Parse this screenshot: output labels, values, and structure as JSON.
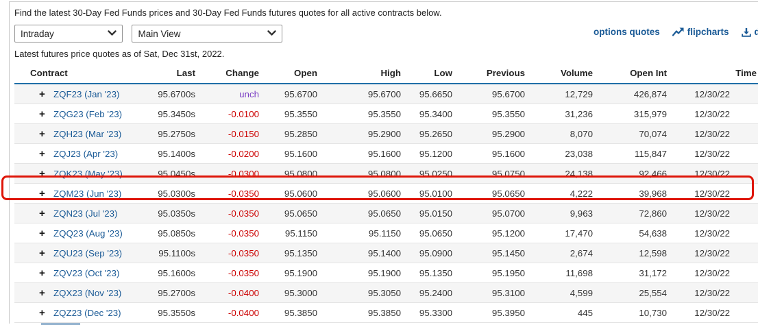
{
  "page": {
    "intro": "Find the latest 30-Day Fed Funds prices and 30-Day Fed Funds futures quotes for all active contracts below.",
    "note": "Latest futures price quotes as of Sat, Dec 31st, 2022."
  },
  "toolbar": {
    "frequency_select": {
      "value": "Intraday"
    },
    "view_select": {
      "value": "Main View"
    },
    "links": {
      "options_quotes": "options quotes",
      "flipcharts": "flipcharts",
      "download": "d"
    },
    "icons": {
      "chevron": "chevron-down",
      "flipcharts": "zigzag-trend-arrow",
      "download": "download-tray-arrow"
    }
  },
  "table": {
    "columns": [
      "Contract",
      "Last",
      "Change",
      "Open",
      "High",
      "Low",
      "Previous",
      "Volume",
      "Open Int",
      "Time"
    ],
    "highlighted_contract": "ZQM23 (Jun '23)",
    "rows": [
      {
        "contract": "ZQF23 (Jan '23)",
        "last": "95.6700s",
        "change": "unch",
        "open": "95.6700",
        "high": "95.6700",
        "low": "95.6650",
        "previous": "95.6700",
        "volume": "12,729",
        "open_int": "426,874",
        "time": "12/30/22"
      },
      {
        "contract": "ZQG23 (Feb '23)",
        "last": "95.3450s",
        "change": "-0.0100",
        "open": "95.3550",
        "high": "95.3550",
        "low": "95.3400",
        "previous": "95.3550",
        "volume": "31,236",
        "open_int": "315,979",
        "time": "12/30/22"
      },
      {
        "contract": "ZQH23 (Mar '23)",
        "last": "95.2750s",
        "change": "-0.0150",
        "open": "95.2850",
        "high": "95.2900",
        "low": "95.2650",
        "previous": "95.2900",
        "volume": "8,070",
        "open_int": "70,074",
        "time": "12/30/22"
      },
      {
        "contract": "ZQJ23 (Apr '23)",
        "last": "95.1400s",
        "change": "-0.0200",
        "open": "95.1600",
        "high": "95.1600",
        "low": "95.1200",
        "previous": "95.1600",
        "volume": "23,038",
        "open_int": "115,847",
        "time": "12/30/22"
      },
      {
        "contract": "ZQK23 (May '23)",
        "last": "95.0450s",
        "change": "-0.0300",
        "open": "95.0800",
        "high": "95.0800",
        "low": "95.0250",
        "previous": "95.0750",
        "volume": "24,138",
        "open_int": "92,466",
        "time": "12/30/22"
      },
      {
        "contract": "ZQM23 (Jun '23)",
        "last": "95.0300s",
        "change": "-0.0350",
        "open": "95.0600",
        "high": "95.0600",
        "low": "95.0100",
        "previous": "95.0650",
        "volume": "4,222",
        "open_int": "39,968",
        "time": "12/30/22"
      },
      {
        "contract": "ZQN23 (Jul '23)",
        "last": "95.0350s",
        "change": "-0.0350",
        "open": "95.0650",
        "high": "95.0650",
        "low": "95.0150",
        "previous": "95.0700",
        "volume": "9,963",
        "open_int": "72,860",
        "time": "12/30/22"
      },
      {
        "contract": "ZQQ23 (Aug '23)",
        "last": "95.0850s",
        "change": "-0.0350",
        "open": "95.1150",
        "high": "95.1150",
        "low": "95.0650",
        "previous": "95.1200",
        "volume": "17,470",
        "open_int": "54,638",
        "time": "12/30/22"
      },
      {
        "contract": "ZQU23 (Sep '23)",
        "last": "95.1100s",
        "change": "-0.0350",
        "open": "95.1350",
        "high": "95.1400",
        "low": "95.0900",
        "previous": "95.1450",
        "volume": "2,674",
        "open_int": "12,598",
        "time": "12/30/22"
      },
      {
        "contract": "ZQV23 (Oct '23)",
        "last": "95.1600s",
        "change": "-0.0350",
        "open": "95.1900",
        "high": "95.1900",
        "low": "95.1350",
        "previous": "95.1950",
        "volume": "11,698",
        "open_int": "31,172",
        "time": "12/30/22"
      },
      {
        "contract": "ZQX23 (Nov '23)",
        "last": "95.2700s",
        "change": "-0.0400",
        "open": "95.3000",
        "high": "95.3050",
        "low": "95.2400",
        "previous": "95.3100",
        "volume": "4,599",
        "open_int": "25,554",
        "time": "12/30/22"
      },
      {
        "contract": "ZQZ23 (Dec '23)",
        "last": "95.3550s",
        "change": "-0.0400",
        "open": "95.3850",
        "high": "95.3850",
        "low": "95.3300",
        "previous": "95.3950",
        "volume": "445",
        "open_int": "10,730",
        "time": "12/30/22"
      }
    ]
  },
  "colors": {
    "link_blue": "#1a5a96",
    "header_rule_blue": "#1f6fa8",
    "negative_red": "#cc0000",
    "unchanged_purple": "#7b3fc4",
    "highlight_red": "#de1508",
    "row_alt_gray": "#f5f5f5"
  }
}
